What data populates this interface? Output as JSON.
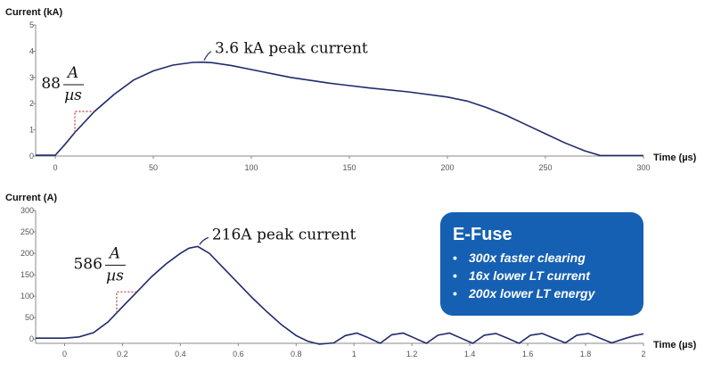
{
  "chart_data": [
    {
      "type": "line",
      "ylabel": "Current (kA)",
      "xlabel": "Time (µs)",
      "xlim": [
        -10,
        300
      ],
      "ylim": [
        0,
        5
      ],
      "x_ticks": [
        "0",
        "50",
        "100",
        "150",
        "200",
        "250",
        "300"
      ],
      "y_ticks": [
        "0",
        "1",
        "2",
        "3",
        "4",
        "5"
      ],
      "series": [
        {
          "color": "#1f2a6b",
          "x": [
            -10,
            0,
            5,
            10,
            20,
            30,
            40,
            50,
            60,
            70,
            75,
            80,
            90,
            100,
            120,
            140,
            160,
            180,
            200,
            210,
            220,
            230,
            240,
            250,
            260,
            270,
            278,
            300
          ],
          "y": [
            0.03,
            0.03,
            0.45,
            0.9,
            1.7,
            2.35,
            2.9,
            3.25,
            3.47,
            3.57,
            3.58,
            3.56,
            3.45,
            3.3,
            3.0,
            2.78,
            2.6,
            2.45,
            2.25,
            2.1,
            1.85,
            1.55,
            1.2,
            0.85,
            0.5,
            0.2,
            0.02,
            0.02
          ]
        }
      ],
      "annotations": [
        {
          "text": "3.6 kA peak current"
        },
        {
          "numerator": "A",
          "value": "88",
          "denominator": "µs"
        }
      ]
    },
    {
      "type": "line",
      "ylabel": "Current (A)",
      "xlabel": "Time (µs)",
      "xlim": [
        -0.1,
        2.0
      ],
      "ylim": [
        -10,
        300
      ],
      "x_ticks": [
        "0",
        "0.2",
        "0.4",
        "0.6",
        "0.8",
        "1",
        "1.2",
        "1.4",
        "1.6",
        "1.8",
        "2"
      ],
      "y_ticks": [
        "0",
        "50",
        "100",
        "150",
        "200",
        "250",
        "300"
      ],
      "series": [
        {
          "color": "#1f2a6b",
          "x": [
            -0.1,
            0.0,
            0.05,
            0.1,
            0.15,
            0.2,
            0.25,
            0.3,
            0.35,
            0.4,
            0.43,
            0.46,
            0.5,
            0.55,
            0.6,
            0.65,
            0.7,
            0.75,
            0.8,
            0.84,
            0.88,
            0.93,
            0.97,
            1.01,
            1.05,
            1.09,
            1.13,
            1.17,
            1.21,
            1.25,
            1.29,
            1.33,
            1.37,
            1.41,
            1.45,
            1.49,
            1.53,
            1.57,
            1.61,
            1.65,
            1.69,
            1.73,
            1.77,
            1.81,
            1.85,
            1.89,
            1.93,
            1.97,
            2.0
          ],
          "y": [
            2,
            2,
            5,
            15,
            40,
            75,
            110,
            145,
            175,
            200,
            212,
            216,
            200,
            165,
            130,
            95,
            63,
            33,
            8,
            -5,
            -12,
            -9,
            8,
            14,
            3,
            -10,
            10,
            14,
            2,
            -10,
            9,
            14,
            2,
            -10,
            9,
            13,
            2,
            -10,
            9,
            13,
            2,
            -9,
            9,
            13,
            2,
            -9,
            0,
            8,
            12
          ]
        }
      ],
      "annotations": [
        {
          "text": "216A peak current"
        },
        {
          "numerator": "A",
          "value": "586",
          "denominator": "µs"
        }
      ]
    }
  ],
  "callout": {
    "title": "E-Fuse",
    "bullet": "•",
    "items": [
      "300x faster clearing",
      "16x lower LT current",
      "200x lower LT energy"
    ],
    "background": "#1560b3",
    "text_color": "#ffffff"
  }
}
